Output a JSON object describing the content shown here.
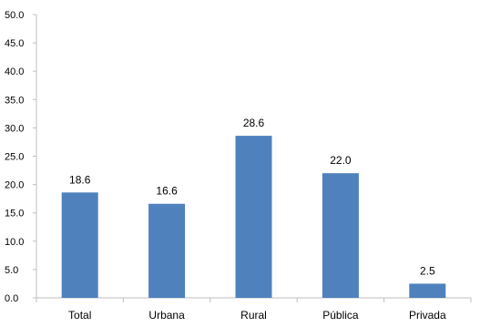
{
  "chart_data": {
    "type": "bar",
    "categories": [
      "Total",
      "Urbana",
      "Rural",
      "Pública",
      "Privada"
    ],
    "values": [
      18.6,
      16.6,
      28.6,
      22.0,
      2.5
    ],
    "value_labels": [
      "18.6",
      "16.6",
      "28.6",
      "22.0",
      "2.5"
    ],
    "yticks": [
      "0.0",
      "5.0",
      "10.0",
      "15.0",
      "20.0",
      "25.0",
      "30.0",
      "35.0",
      "40.0",
      "45.0",
      "50.0"
    ],
    "ylim": [
      0,
      50
    ],
    "grid": false,
    "legend": "none",
    "title": "",
    "xlabel": "",
    "ylabel": "",
    "bar_color": "#4F81BD",
    "axis_color": "#BFBFBF",
    "text_color": "#000000"
  }
}
